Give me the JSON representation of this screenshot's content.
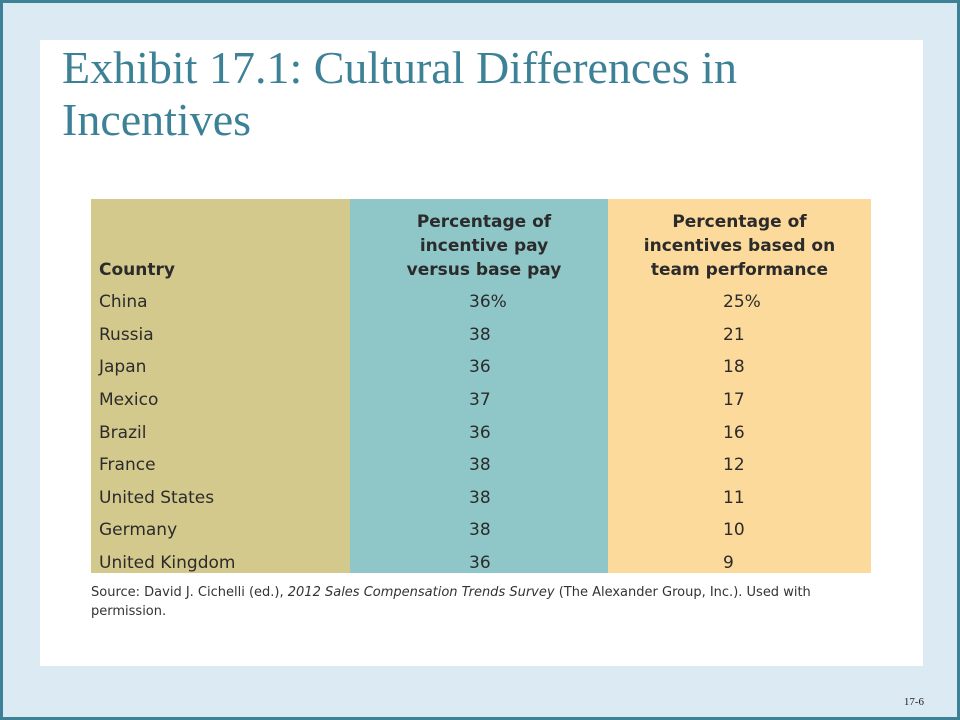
{
  "slide": {
    "title": "Exhibit 17.1: Cultural Differences in Incentives",
    "number": "17-6"
  },
  "table": {
    "headers": {
      "country": "Country",
      "incentive_pay": "Percentage of incentive pay versus base pay",
      "team_performance": "Percentage of incentives based on team performance"
    },
    "rows": [
      {
        "country": "China",
        "incentive_pay": "36%",
        "team": "25%"
      },
      {
        "country": "Russia",
        "incentive_pay": "38",
        "team": "21"
      },
      {
        "country": "Japan",
        "incentive_pay": "36",
        "team": "18"
      },
      {
        "country": "Mexico",
        "incentive_pay": "37",
        "team": "17"
      },
      {
        "country": "Brazil",
        "incentive_pay": "36",
        "team": "16"
      },
      {
        "country": "France",
        "incentive_pay": "38",
        "team": "12"
      },
      {
        "country": "United States",
        "incentive_pay": "38",
        "team": "11"
      },
      {
        "country": "Germany",
        "incentive_pay": "38",
        "team": "10"
      },
      {
        "country": "United Kingdom",
        "incentive_pay": "36",
        "team": "9"
      }
    ]
  },
  "source": {
    "prefix": "Source: David J. Cichelli (ed.), ",
    "title": "2012 Sales Compensation Trends Survey",
    "suffix": " (The Alexander Group, Inc.). Used with permission."
  },
  "colors": {
    "frame": "#3c8195",
    "title": "#3c8195",
    "country_column": "#d4c98d",
    "incentive_column": "#8fc7c9",
    "team_column": "#fcda9b"
  }
}
